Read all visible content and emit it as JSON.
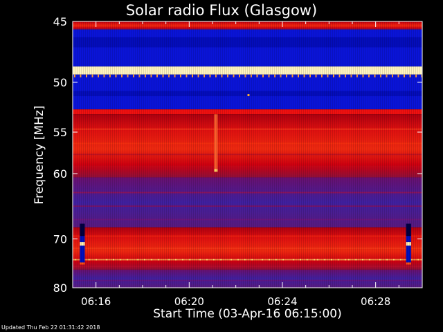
{
  "chart_data": {
    "type": "heatmap",
    "title": "Solar radio Flux (Glasgow)",
    "xlabel": "Start Time (03-Apr-16 06:15:00)",
    "ylabel": "Frequency [MHz]",
    "y_ticks": [
      "45",
      "50",
      "55",
      "60",
      "70",
      "80"
    ],
    "x_ticks": [
      "06:16",
      "06:20",
      "06:24",
      "06:28"
    ],
    "x_tick_minutes": [
      16,
      20,
      24,
      28
    ],
    "x_range_minutes": [
      15,
      30
    ],
    "y_axis_scale": "reciprocal (1/f)",
    "ylim": [
      80,
      45
    ],
    "colormap": "black-blue-red-yellow-white",
    "bands": [
      {
        "f_start": 45,
        "f_end": 45.6,
        "level": "red"
      },
      {
        "f_start": 45.6,
        "f_end": 48.6,
        "level": "blue"
      },
      {
        "f_start": 48.6,
        "f_end": 49.3,
        "level": "white"
      },
      {
        "f_start": 49.3,
        "f_end": 52.6,
        "level": "blue"
      },
      {
        "f_start": 52.6,
        "f_end": 53.1,
        "level": "red"
      },
      {
        "f_start": 53.1,
        "f_end": 60.5,
        "level": "red"
      },
      {
        "f_start": 60.5,
        "f_end": 68.0,
        "level": "purple"
      },
      {
        "f_start": 68.0,
        "f_end": 76.0,
        "level": "red"
      },
      {
        "f_start": 76.0,
        "f_end": 80.0,
        "level": "purple"
      }
    ]
  },
  "footer_text": "Updated Thu Feb 22 01:31:42 2018"
}
